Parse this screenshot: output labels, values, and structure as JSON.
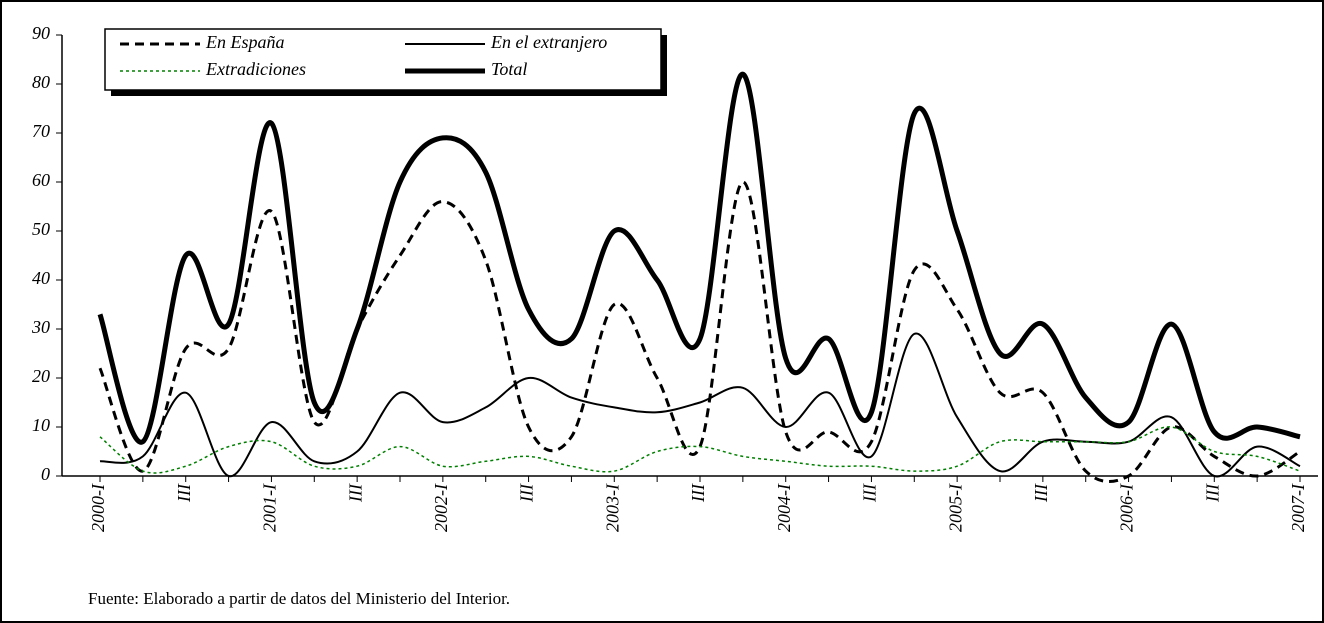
{
  "chart_data": {
    "type": "line",
    "categories": [
      "2000-I",
      null,
      "III",
      null,
      "2001-I",
      null,
      "III",
      null,
      "2002-I",
      null,
      "III",
      null,
      "2003-I",
      null,
      "III",
      null,
      "2004-I",
      null,
      "III",
      null,
      "2005-I",
      null,
      "III",
      null,
      "2006-I",
      null,
      "III",
      null,
      "2007-I"
    ],
    "series": [
      {
        "name": "En España",
        "color": "#000000",
        "style": "dashed",
        "width": 3,
        "values": [
          22,
          1,
          26,
          26,
          54,
          11,
          30,
          45,
          56,
          44,
          10,
          8,
          35,
          20,
          6,
          60,
          9,
          9,
          7,
          42,
          34,
          17,
          17,
          1,
          0,
          10,
          4,
          0,
          5
        ]
      },
      {
        "name": "En el extranjero",
        "color": "#000000",
        "style": "solid",
        "width": 2,
        "values": [
          3,
          4,
          17,
          0,
          11,
          3,
          5,
          17,
          11,
          14,
          20,
          16,
          14,
          13,
          15,
          18,
          10,
          17,
          4,
          29,
          12,
          1,
          7,
          7,
          7,
          12,
          0,
          6,
          2
        ]
      },
      {
        "name": "Extradiciones",
        "color": "#008000",
        "style": "dotted",
        "width": 1.5,
        "values": [
          8,
          1,
          2,
          6,
          7,
          2,
          2,
          6,
          2,
          3,
          4,
          2,
          1,
          5,
          6,
          4,
          3,
          2,
          2,
          1,
          2,
          7,
          7,
          7,
          7,
          10,
          5,
          4,
          1
        ]
      },
      {
        "name": "Total",
        "color": "#000000",
        "style": "solid",
        "width": 5,
        "values": [
          33,
          7,
          45,
          31,
          72,
          15,
          30,
          60,
          69,
          62,
          34,
          28,
          50,
          40,
          28,
          82,
          24,
          28,
          13,
          74,
          50,
          25,
          31,
          16,
          11,
          31,
          9,
          10,
          8
        ]
      }
    ],
    "ylim": [
      0,
      90
    ],
    "yticks": [
      0,
      10,
      20,
      30,
      40,
      50,
      60,
      70,
      80,
      90
    ],
    "grid": false,
    "legend": "top-left",
    "source": "Fuente: Elaborado a partir de datos del Ministerio del Interior."
  }
}
